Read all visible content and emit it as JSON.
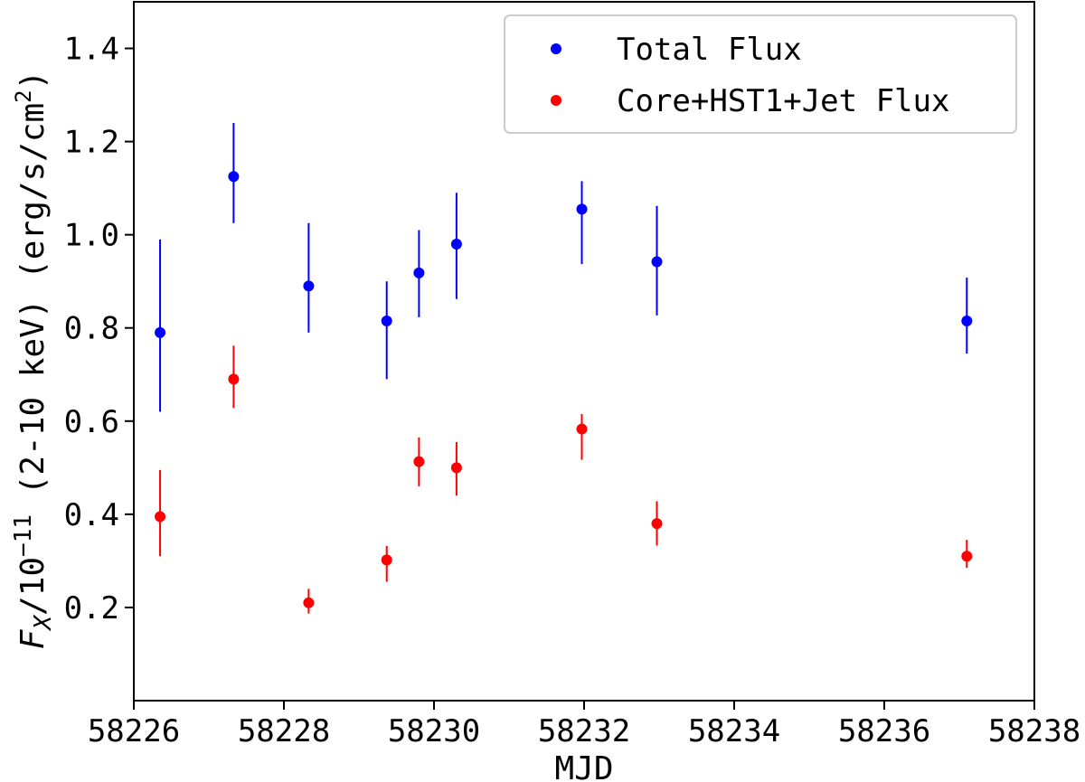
{
  "chart_data": {
    "type": "scatter",
    "xlabel": "MJD",
    "ylabel_main": "F",
    "ylabel_sub": "X",
    "ylabel_rest": "/10",
    "ylabel_exp": "−11",
    "ylabel_tail": " (2-10 keV) (erg/s/cm",
    "ylabel_unit_exp": "2",
    "ylabel_close": ")",
    "xlim": [
      58226,
      58238
    ],
    "ylim": [
      0.0,
      1.5
    ],
    "xticks": [
      58226,
      58228,
      58230,
      58232,
      58234,
      58236,
      58238
    ],
    "xtick_labels": [
      "58226",
      "58228",
      "58230",
      "58232",
      "58234",
      "58236",
      "58238"
    ],
    "yticks": [
      0.2,
      0.4,
      0.6,
      0.8,
      1.0,
      1.2,
      1.4
    ],
    "ytick_labels": [
      "0.2",
      "0.4",
      "0.6",
      "0.8",
      "1.0",
      "1.2",
      "1.4"
    ],
    "grid": false,
    "legend_position": "top-right",
    "series": [
      {
        "name": "Total Flux",
        "color": "#0000ff",
        "points": [
          {
            "x": 58226.35,
            "y": 0.79,
            "ylo": 0.62,
            "yhi": 0.99
          },
          {
            "x": 58227.33,
            "y": 1.125,
            "ylo": 1.025,
            "yhi": 1.24
          },
          {
            "x": 58228.33,
            "y": 0.89,
            "ylo": 0.79,
            "yhi": 1.025
          },
          {
            "x": 58229.37,
            "y": 0.815,
            "ylo": 0.69,
            "yhi": 0.9
          },
          {
            "x": 58229.8,
            "y": 0.918,
            "ylo": 0.823,
            "yhi": 1.01
          },
          {
            "x": 58230.3,
            "y": 0.98,
            "ylo": 0.862,
            "yhi": 1.09
          },
          {
            "x": 58231.97,
            "y": 1.055,
            "ylo": 0.937,
            "yhi": 1.115
          },
          {
            "x": 58232.97,
            "y": 0.942,
            "ylo": 0.827,
            "yhi": 1.062
          },
          {
            "x": 58237.1,
            "y": 0.815,
            "ylo": 0.745,
            "yhi": 0.908
          }
        ]
      },
      {
        "name": "Core+HST1+Jet Flux",
        "color": "#ff0000",
        "points": [
          {
            "x": 58226.35,
            "y": 0.395,
            "ylo": 0.31,
            "yhi": 0.495
          },
          {
            "x": 58227.33,
            "y": 0.69,
            "ylo": 0.628,
            "yhi": 0.762
          },
          {
            "x": 58228.33,
            "y": 0.21,
            "ylo": 0.187,
            "yhi": 0.24
          },
          {
            "x": 58229.37,
            "y": 0.302,
            "ylo": 0.255,
            "yhi": 0.332
          },
          {
            "x": 58229.8,
            "y": 0.513,
            "ylo": 0.46,
            "yhi": 0.565
          },
          {
            "x": 58230.3,
            "y": 0.5,
            "ylo": 0.44,
            "yhi": 0.555
          },
          {
            "x": 58231.97,
            "y": 0.583,
            "ylo": 0.517,
            "yhi": 0.615
          },
          {
            "x": 58232.97,
            "y": 0.38,
            "ylo": 0.333,
            "yhi": 0.428
          },
          {
            "x": 58237.1,
            "y": 0.31,
            "ylo": 0.285,
            "yhi": 0.345
          }
        ]
      }
    ]
  }
}
